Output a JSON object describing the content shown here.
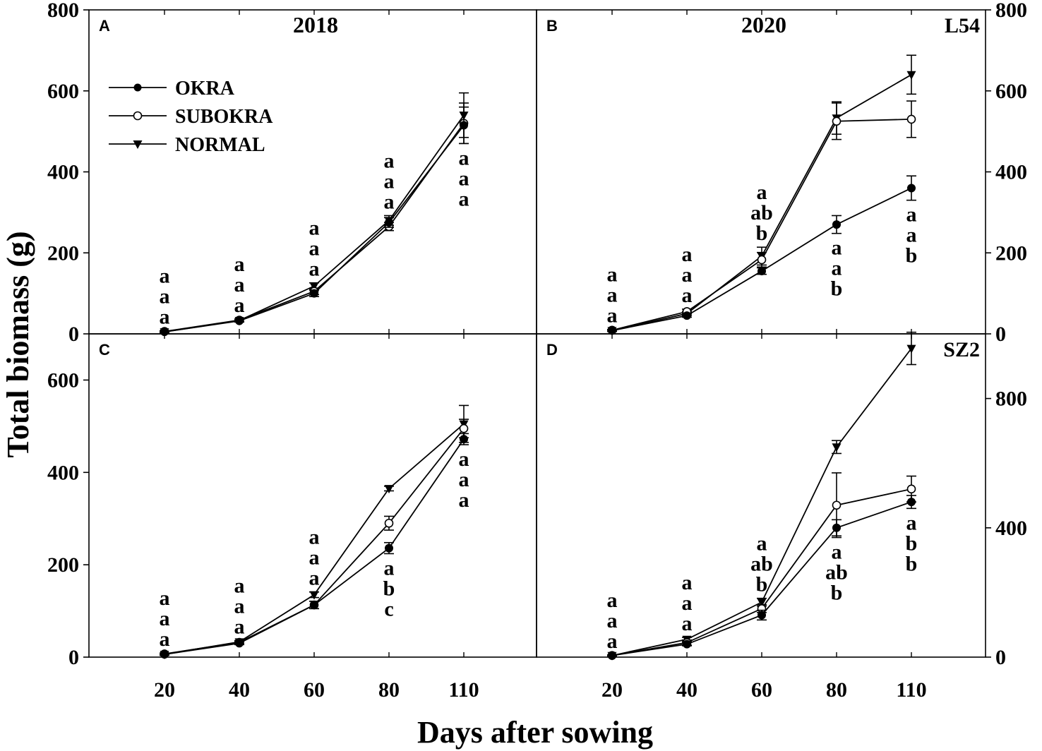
{
  "figure": {
    "ylabel": "Total biomass (g)",
    "xlabel": "Days after sowing",
    "x_ticks": [
      "20",
      "40",
      "60",
      "80",
      "110"
    ]
  },
  "legend": [
    {
      "name": "OKRA",
      "marker": "filled-circle"
    },
    {
      "name": "SUBOKRA",
      "marker": "open-circle"
    },
    {
      "name": "NORMAL",
      "marker": "down-triangle"
    }
  ],
  "chart_data": [
    {
      "type": "line",
      "panel": "A",
      "title": "2018",
      "variety": "",
      "x": [
        20,
        40,
        60,
        80,
        110
      ],
      "ylim": [
        0,
        800
      ],
      "yticks": [
        0,
        200,
        400,
        600,
        800
      ],
      "yaxis_side": "left",
      "series": [
        {
          "name": "OKRA",
          "values": [
            5,
            32,
            100,
            275,
            515
          ],
          "errors": [
            2,
            3,
            8,
            12,
            45
          ]
        },
        {
          "name": "SUBOKRA",
          "values": [
            6,
            34,
            105,
            265,
            520
          ],
          "errors": [
            2,
            3,
            8,
            10,
            50
          ]
        },
        {
          "name": "NORMAL",
          "values": [
            5,
            33,
            118,
            280,
            540
          ],
          "errors": [
            2,
            3,
            8,
            12,
            55
          ]
        }
      ],
      "significance": [
        {
          "x": 20,
          "letters": [
            "a",
            "a",
            "a"
          ],
          "position": "above"
        },
        {
          "x": 40,
          "letters": [
            "a",
            "a",
            "a"
          ],
          "position": "above"
        },
        {
          "x": 60,
          "letters": [
            "a",
            "a",
            "a"
          ],
          "position": "above"
        },
        {
          "x": 80,
          "letters": [
            "a",
            "a",
            "a"
          ],
          "position": "above"
        },
        {
          "x": 110,
          "letters": [
            "a",
            "a",
            "a"
          ],
          "position": "below"
        }
      ]
    },
    {
      "type": "line",
      "panel": "B",
      "title": "2020",
      "variety": "L54",
      "x": [
        20,
        40,
        60,
        80,
        110
      ],
      "ylim": [
        0,
        800
      ],
      "yticks": [
        0,
        200,
        400,
        600,
        800
      ],
      "yaxis_side": "right",
      "series": [
        {
          "name": "OKRA",
          "values": [
            8,
            45,
            155,
            270,
            360
          ],
          "errors": [
            2,
            4,
            8,
            22,
            30
          ]
        },
        {
          "name": "SUBOKRA",
          "values": [
            9,
            55,
            183,
            525,
            530
          ],
          "errors": [
            2,
            6,
            18,
            45,
            45
          ]
        },
        {
          "name": "NORMAL",
          "values": [
            8,
            50,
            192,
            533,
            640
          ],
          "errors": [
            2,
            5,
            22,
            40,
            48
          ]
        }
      ],
      "significance": [
        {
          "x": 20,
          "letters": [
            "a",
            "a",
            "a"
          ],
          "position": "above"
        },
        {
          "x": 40,
          "letters": [
            "a",
            "a",
            "a"
          ],
          "position": "above"
        },
        {
          "x": 60,
          "letters": [
            "a",
            "ab",
            "b"
          ],
          "position": "above"
        },
        {
          "x": 80,
          "letters": [
            "a",
            "a",
            "b"
          ],
          "position": "below"
        },
        {
          "x": 110,
          "letters": [
            "a",
            "a",
            "b"
          ],
          "position": "below"
        }
      ]
    },
    {
      "type": "line",
      "panel": "C",
      "title": "",
      "variety": "",
      "x": [
        20,
        40,
        60,
        80,
        110
      ],
      "ylim": [
        0,
        700
      ],
      "yticks": [
        0,
        200,
        400,
        600
      ],
      "yaxis_side": "left",
      "series": [
        {
          "name": "OKRA",
          "values": [
            6,
            30,
            113,
            236,
            472
          ],
          "errors": [
            2,
            3,
            8,
            12,
            12
          ]
        },
        {
          "name": "SUBOKRA",
          "values": [
            7,
            32,
            113,
            290,
            495
          ],
          "errors": [
            2,
            3,
            8,
            15,
            20
          ]
        },
        {
          "name": "NORMAL",
          "values": [
            6,
            33,
            135,
            365,
            505
          ],
          "errors": [
            2,
            3,
            6,
            5,
            40
          ]
        }
      ],
      "significance": [
        {
          "x": 20,
          "letters": [
            "a",
            "a",
            "a"
          ],
          "position": "above"
        },
        {
          "x": 40,
          "letters": [
            "a",
            "a",
            "a"
          ],
          "position": "above"
        },
        {
          "x": 60,
          "letters": [
            "a",
            "a",
            "a"
          ],
          "position": "above"
        },
        {
          "x": 80,
          "letters": [
            "a",
            "b",
            "c"
          ],
          "position": "below"
        },
        {
          "x": 110,
          "letters": [
            "a",
            "a",
            "a"
          ],
          "position": "below"
        }
      ]
    },
    {
      "type": "line",
      "panel": "D",
      "title": "",
      "variety": "SZ2",
      "x": [
        20,
        40,
        60,
        80,
        110
      ],
      "ylim": [
        0,
        1000
      ],
      "yticks": [
        0,
        400,
        800
      ],
      "yaxis_side": "right",
      "series": [
        {
          "name": "OKRA",
          "values": [
            5,
            40,
            130,
            400,
            480
          ],
          "errors": [
            2,
            5,
            15,
            25,
            20
          ]
        },
        {
          "name": "SUBOKRA",
          "values": [
            5,
            45,
            150,
            470,
            520
          ],
          "errors": [
            2,
            8,
            12,
            100,
            40
          ]
        },
        {
          "name": "NORMAL",
          "values": [
            5,
            55,
            170,
            650,
            955
          ],
          "errors": [
            2,
            6,
            12,
            20,
            50
          ]
        }
      ],
      "significance": [
        {
          "x": 20,
          "letters": [
            "a",
            "a",
            "a"
          ],
          "position": "above"
        },
        {
          "x": 40,
          "letters": [
            "a",
            "a",
            "a"
          ],
          "position": "above"
        },
        {
          "x": 60,
          "letters": [
            "a",
            "ab",
            "b"
          ],
          "position": "above"
        },
        {
          "x": 80,
          "letters": [
            "a",
            "ab",
            "b"
          ],
          "position": "below"
        },
        {
          "x": 110,
          "letters": [
            "a",
            "b",
            "b"
          ],
          "position": "below"
        }
      ]
    }
  ]
}
